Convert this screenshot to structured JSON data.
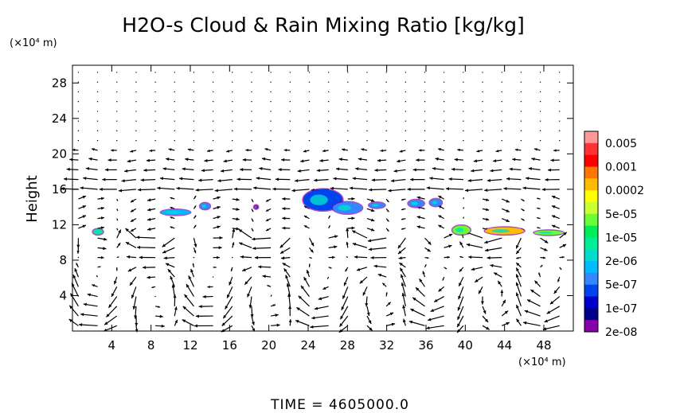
{
  "chart_data": {
    "type": "contour-vector",
    "title": "H2O-s Cloud & Rain Mixing Ratio [kg/kg]",
    "ylabel": "Height",
    "xunit": "(×10⁴ m)",
    "yunit": "(×10⁴ m)",
    "time_label": "TIME  =  4605000.0",
    "xlim": [
      0,
      51
    ],
    "ylim": [
      0,
      30
    ],
    "xticks": [
      4,
      8,
      12,
      16,
      20,
      24,
      28,
      32,
      36,
      40,
      44,
      48
    ],
    "yticks": [
      4,
      8,
      12,
      16,
      20,
      24,
      28
    ],
    "legend": {
      "labels": [
        "0.005",
        "0.001",
        "0.0002",
        "5e-05",
        "1e-05",
        "2e-06",
        "5e-07",
        "1e-07",
        "2e-08"
      ],
      "colors": [
        "#ff9999",
        "#ff3333",
        "#ff0000",
        "#ff7700",
        "#ffbb00",
        "#ffff00",
        "#ccff33",
        "#66ff33",
        "#00ee55",
        "#00ee99",
        "#00ddcc",
        "#00bbff",
        "#3388ff",
        "#0044ee",
        "#0000cc",
        "#000088",
        "#8800aa"
      ]
    },
    "cloud_patches": [
      {
        "x": 2.6,
        "y": 11.2,
        "w": 1.0,
        "h": 0.6,
        "level": "5e-06"
      },
      {
        "x": 10.5,
        "y": 13.4,
        "w": 3.0,
        "h": 0.6,
        "level": "2e-06"
      },
      {
        "x": 13.5,
        "y": 14.1,
        "w": 1.0,
        "h": 0.7,
        "level": "5e-07"
      },
      {
        "x": 18.7,
        "y": 14.0,
        "w": 0.4,
        "h": 0.4,
        "level": "2e-08"
      },
      {
        "x": 25.5,
        "y": 14.8,
        "w": 4.0,
        "h": 2.4,
        "level": "1e-07"
      },
      {
        "x": 28.0,
        "y": 13.9,
        "w": 3.0,
        "h": 1.3,
        "level": "5e-07"
      },
      {
        "x": 31.0,
        "y": 14.2,
        "w": 1.6,
        "h": 0.6,
        "level": "5e-07"
      },
      {
        "x": 35.0,
        "y": 14.4,
        "w": 1.6,
        "h": 0.8,
        "level": "5e-07"
      },
      {
        "x": 37.0,
        "y": 14.5,
        "w": 1.2,
        "h": 0.8,
        "level": "5e-07"
      },
      {
        "x": 39.6,
        "y": 11.4,
        "w": 1.8,
        "h": 1.0,
        "level": "1e-05"
      },
      {
        "x": 44.0,
        "y": 11.3,
        "w": 4.0,
        "h": 0.8,
        "level": "5e-05"
      },
      {
        "x": 48.5,
        "y": 11.1,
        "w": 3.0,
        "h": 0.5,
        "level": "1e-05"
      }
    ]
  }
}
